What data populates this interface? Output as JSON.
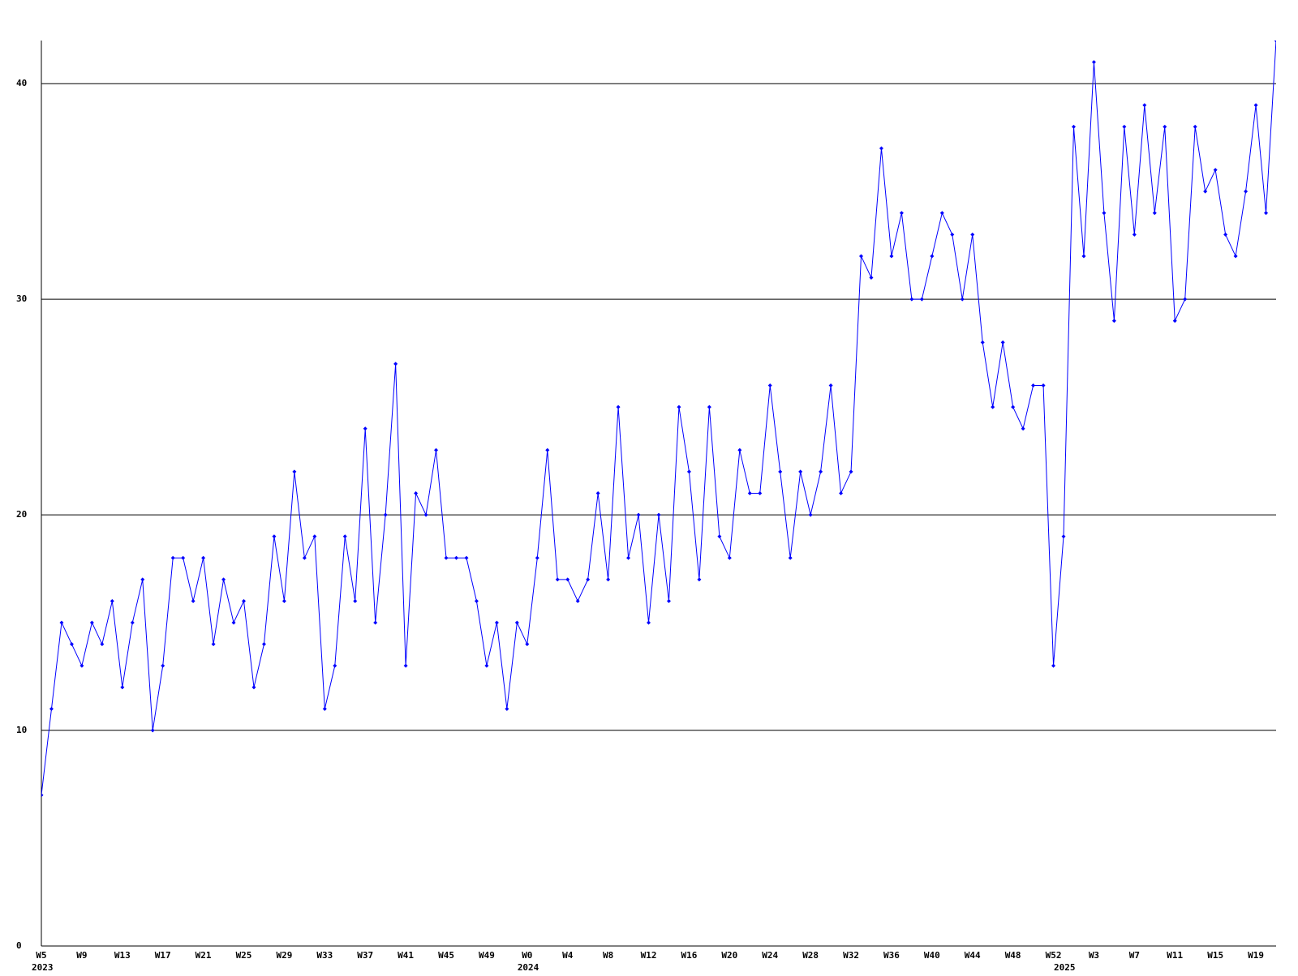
{
  "chart_data": {
    "type": "line",
    "categories": [
      "W5",
      null,
      null,
      null,
      "W9",
      null,
      null,
      null,
      "W13",
      null,
      null,
      null,
      "W17",
      null,
      null,
      null,
      "W21",
      null,
      null,
      null,
      "W25",
      null,
      null,
      null,
      "W29",
      null,
      null,
      null,
      "W33",
      null,
      null,
      null,
      "W37",
      null,
      null,
      null,
      "W41",
      null,
      null,
      null,
      "W45",
      null,
      null,
      null,
      "W49",
      null,
      null,
      null,
      "W0",
      null,
      null,
      null,
      "W4",
      null,
      null,
      null,
      "W8",
      null,
      null,
      null,
      "W12",
      null,
      null,
      null,
      "W16",
      null,
      null,
      null,
      "W20",
      null,
      null,
      null,
      "W24",
      null,
      null,
      null,
      "W28",
      null,
      null,
      null,
      "W32",
      null,
      null,
      null,
      "W36",
      null,
      null,
      null,
      "W40",
      null,
      null,
      null,
      "W44",
      null,
      null,
      null,
      "W48",
      null,
      null,
      null,
      "W52",
      null,
      null,
      null,
      "W3",
      null,
      null,
      null,
      "W7",
      null,
      null,
      null,
      "W11",
      null,
      null,
      null,
      "W15",
      null,
      null,
      null,
      "W19",
      null,
      null
    ],
    "years": [
      "2023",
      null,
      null,
      null,
      null,
      null,
      null,
      null,
      null,
      null,
      null,
      null,
      null,
      null,
      null,
      null,
      null,
      null,
      null,
      null,
      null,
      null,
      null,
      null,
      null,
      null,
      null,
      null,
      null,
      null,
      null,
      null,
      null,
      null,
      null,
      null,
      null,
      null,
      null,
      null,
      null,
      null,
      null,
      null,
      null,
      null,
      null,
      null,
      "2024",
      null,
      null,
      null,
      null,
      null,
      null,
      null,
      null,
      null,
      null,
      null,
      null,
      null,
      null,
      null,
      null,
      null,
      null,
      null,
      null,
      null,
      null,
      null,
      null,
      null,
      null,
      null,
      null,
      null,
      null,
      null,
      null,
      null,
      null,
      null,
      null,
      null,
      null,
      null,
      null,
      null,
      null,
      null,
      null,
      null,
      null,
      null,
      null,
      null,
      null,
      null,
      null,
      "2025",
      null,
      null,
      null,
      null,
      null,
      null,
      null,
      null,
      null,
      null,
      null,
      null,
      null,
      null,
      null,
      null,
      null,
      null,
      null,
      null,
      null
    ],
    "series": [
      {
        "color": "#0000ff",
        "values": [
          7,
          11,
          15,
          14,
          13,
          15,
          14,
          16,
          12,
          15,
          17,
          10,
          13,
          18,
          18,
          16,
          18,
          14,
          17,
          15,
          16,
          12,
          14,
          19,
          16,
          22,
          18,
          19,
          11,
          13,
          19,
          16,
          24,
          15,
          20,
          27,
          13,
          21,
          20,
          23,
          18,
          18,
          18,
          16,
          13,
          15,
          11,
          15,
          14,
          18,
          23,
          17,
          17,
          16,
          17,
          21,
          17,
          25,
          18,
          20,
          15,
          20,
          16,
          25,
          22,
          17,
          25,
          19,
          18,
          23,
          21,
          21,
          26,
          22,
          18,
          22,
          20,
          22,
          26,
          21,
          22,
          32,
          31,
          37,
          32,
          34,
          30,
          30,
          32,
          34,
          33,
          30,
          33,
          28,
          25,
          28,
          25,
          24,
          26,
          26,
          13,
          19,
          38,
          32,
          41,
          34,
          29,
          38,
          33,
          39,
          34,
          38,
          29,
          30,
          38,
          35,
          36,
          33,
          32,
          35,
          39,
          34,
          42
        ]
      }
    ],
    "ylim": [
      0,
      42
    ],
    "yticks": [
      0,
      10,
      20,
      30,
      40
    ],
    "grid": true
  }
}
